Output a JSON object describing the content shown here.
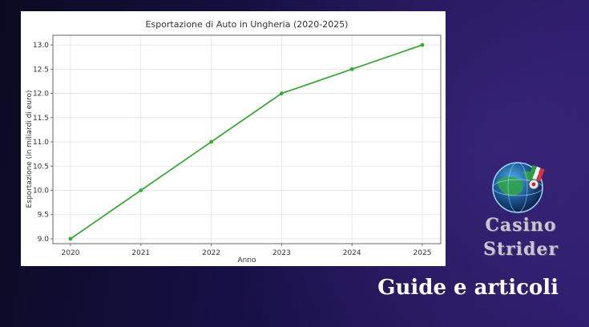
{
  "chart_data": {
    "type": "line",
    "title": "Esportazione di Auto in Ungheria (2020-2025)",
    "xlabel": "Anno",
    "ylabel": "Esportazione (in miliardi di euro)",
    "x": [
      2020,
      2021,
      2022,
      2023,
      2024,
      2025
    ],
    "values": [
      9.0,
      10.0,
      11.0,
      12.0,
      12.5,
      13.0
    ],
    "ylim": [
      8.9,
      13.2
    ],
    "yticks": [
      "9.0",
      "9.5",
      "10.0",
      "10.5",
      "11.0",
      "11.5",
      "12.0",
      "12.5",
      "13.0"
    ],
    "xticks": [
      "2020",
      "2021",
      "2022",
      "2023",
      "2024",
      "2025"
    ],
    "grid": true,
    "line_color": "#3aa83a"
  },
  "brand": {
    "line1": "Casino",
    "line2": "Strider",
    "logo_icon": "globe-roulette-icon"
  },
  "tagline": "Guide e articoli"
}
